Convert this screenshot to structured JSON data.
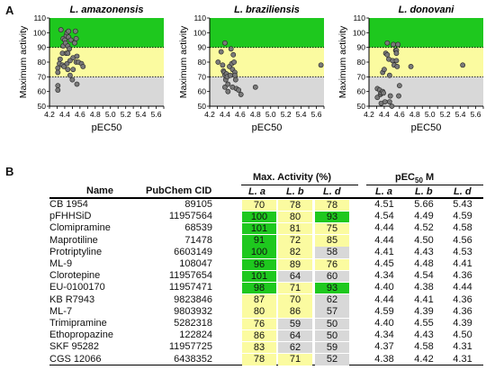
{
  "panel_a_label": "A",
  "panel_b_label": "B",
  "colors": {
    "green": "#1ec81e",
    "yellow": "#fbfba0",
    "gray": "#d8d8d8"
  },
  "chart_data": [
    {
      "type": "scatter",
      "title": "L. amazonensis",
      "xlabel": "pEC50",
      "ylabel": "Maximum activity",
      "xlim": [
        4.2,
        5.7
      ],
      "ylim": [
        50,
        110
      ],
      "xticks": [
        "4.2",
        "4.3",
        "4.4",
        "4.5",
        "4.6",
        "4.7",
        "4.8",
        "4.9",
        "5.0",
        "5.1",
        "5.2",
        "5.3",
        "5.4",
        "5.5",
        "5.6",
        "5.7"
      ],
      "yticks": [
        "50",
        "60",
        "70",
        "80",
        "90",
        "100",
        "110"
      ],
      "bands": [
        {
          "from": 90,
          "to": 110,
          "color": "green"
        },
        {
          "from": 70,
          "to": 90,
          "color": "yellow"
        },
        {
          "from": 50,
          "to": 70,
          "color": "gray"
        }
      ],
      "points": [
        [
          4.31,
          76
        ],
        [
          4.31,
          73
        ],
        [
          4.31,
          64
        ],
        [
          4.31,
          61
        ],
        [
          4.33,
          79
        ],
        [
          4.34,
          82
        ],
        [
          4.35,
          102
        ],
        [
          4.37,
          86
        ],
        [
          4.37,
          78
        ],
        [
          4.38,
          96
        ],
        [
          4.38,
          91
        ],
        [
          4.39,
          77
        ],
        [
          4.4,
          95
        ],
        [
          4.41,
          93
        ],
        [
          4.42,
          98
        ],
        [
          4.43,
          100
        ],
        [
          4.42,
          86
        ],
        [
          4.43,
          79
        ],
        [
          4.44,
          91
        ],
        [
          4.44,
          86
        ],
        [
          4.44,
          75
        ],
        [
          4.45,
          101
        ],
        [
          4.45,
          97
        ],
        [
          4.46,
          89
        ],
        [
          4.47,
          81
        ],
        [
          4.47,
          71
        ],
        [
          4.48,
          95
        ],
        [
          4.5,
          68
        ],
        [
          4.51,
          83
        ],
        [
          4.51,
          75
        ],
        [
          4.53,
          93
        ],
        [
          4.54,
          101
        ],
        [
          4.55,
          96
        ],
        [
          4.55,
          80
        ],
        [
          4.56,
          84
        ],
        [
          4.56,
          65
        ],
        [
          4.58,
          80
        ],
        [
          4.62,
          79
        ],
        [
          4.64,
          77
        ]
      ]
    },
    {
      "type": "scatter",
      "title": "L. braziliensis",
      "xlabel": "pEC50",
      "ylabel": "Maximum activity",
      "xlim": [
        4.2,
        5.7
      ],
      "ylim": [
        50,
        110
      ],
      "xticks": [
        "4.2",
        "4.3",
        "4.4",
        "4.5",
        "4.6",
        "4.7",
        "4.8",
        "4.9",
        "5.0",
        "5.1",
        "5.2",
        "5.3",
        "5.4",
        "5.5",
        "5.6",
        "5.7"
      ],
      "yticks": [
        "50",
        "60",
        "70",
        "80",
        "90",
        "100",
        "110"
      ],
      "bands": [
        {
          "from": 90,
          "to": 110,
          "color": "green"
        },
        {
          "from": 70,
          "to": 90,
          "color": "yellow"
        },
        {
          "from": 50,
          "to": 70,
          "color": "gray"
        }
      ],
      "points": [
        [
          4.31,
          80
        ],
        [
          4.35,
          87
        ],
        [
          4.37,
          78
        ],
        [
          4.38,
          74
        ],
        [
          4.39,
          73
        ],
        [
          4.4,
          93
        ],
        [
          4.4,
          71
        ],
        [
          4.4,
          63
        ],
        [
          4.41,
          68
        ],
        [
          4.42,
          72
        ],
        [
          4.43,
          70
        ],
        [
          4.44,
          65
        ],
        [
          4.44,
          60
        ],
        [
          4.46,
          77
        ],
        [
          4.47,
          71
        ],
        [
          4.48,
          89
        ],
        [
          4.49,
          79
        ],
        [
          4.5,
          75
        ],
        [
          4.5,
          63
        ],
        [
          4.51,
          85
        ],
        [
          4.52,
          80
        ],
        [
          4.53,
          73
        ],
        [
          4.53,
          71
        ],
        [
          4.54,
          68
        ],
        [
          4.55,
          62
        ],
        [
          4.58,
          61
        ],
        [
          4.61,
          58
        ],
        [
          4.8,
          63
        ],
        [
          5.66,
          78
        ]
      ]
    },
    {
      "type": "scatter",
      "title": "L. donovani",
      "xlabel": "pEC50",
      "ylabel": "Maximum activity",
      "xlim": [
        4.2,
        5.7
      ],
      "ylim": [
        50,
        110
      ],
      "xticks": [
        "4.2",
        "4.3",
        "4.4",
        "4.5",
        "4.6",
        "4.7",
        "4.8",
        "4.9",
        "5.0",
        "5.1",
        "5.2",
        "5.3",
        "5.4",
        "5.5",
        "5.6",
        "5.7"
      ],
      "yticks": [
        "50",
        "60",
        "70",
        "80",
        "90",
        "100",
        "110"
      ],
      "bands": [
        {
          "from": 90,
          "to": 110,
          "color": "green"
        },
        {
          "from": 70,
          "to": 90,
          "color": "yellow"
        },
        {
          "from": 50,
          "to": 70,
          "color": "gray"
        }
      ],
      "points": [
        [
          4.31,
          62
        ],
        [
          4.31,
          56
        ],
        [
          4.34,
          61
        ],
        [
          4.35,
          58
        ],
        [
          4.36,
          52
        ],
        [
          4.36,
          59
        ],
        [
          4.38,
          60
        ],
        [
          4.38,
          73
        ],
        [
          4.39,
          59
        ],
        [
          4.4,
          75
        ],
        [
          4.41,
          53
        ],
        [
          4.42,
          86
        ],
        [
          4.44,
          85
        ],
        [
          4.44,
          93
        ],
        [
          4.46,
          82
        ],
        [
          4.47,
          71
        ],
        [
          4.47,
          53
        ],
        [
          4.48,
          57
        ],
        [
          4.5,
          50
        ],
        [
          4.51,
          81
        ],
        [
          4.52,
          92
        ],
        [
          4.53,
          78
        ],
        [
          4.55,
          88
        ],
        [
          4.56,
          88
        ],
        [
          4.56,
          86
        ],
        [
          4.56,
          81
        ],
        [
          4.57,
          77
        ],
        [
          4.58,
          92
        ],
        [
          4.59,
          57
        ],
        [
          4.6,
          64
        ],
        [
          5.43,
          78
        ],
        [
          4.75,
          77
        ]
      ]
    }
  ],
  "table": {
    "col_name": "Name",
    "col_cid": "PubChem CID",
    "group_max": "Max. Activity (%)",
    "group_pec_pre": "pEC",
    "group_pec_sub": "50",
    "group_pec_post": " M",
    "sub_a": "L. a",
    "sub_b": "L. b",
    "sub_d": "L. d",
    "rows": [
      {
        "name": "CB 1954",
        "cid": "89105",
        "ma": "70",
        "mb": "78",
        "md": "78",
        "pa": "4.51",
        "pb": "5.66",
        "pd": "5.43"
      },
      {
        "name": "pFHHSiD",
        "cid": "11957564",
        "ma": "100",
        "mb": "80",
        "md": "93",
        "pa": "4.54",
        "pb": "4.49",
        "pd": "4.59"
      },
      {
        "name": "Clomipramine",
        "cid": "68539",
        "ma": "101",
        "mb": "81",
        "md": "75",
        "pa": "4.44",
        "pb": "4.52",
        "pd": "4.58"
      },
      {
        "name": "Maprotiline",
        "cid": "71478",
        "ma": "91",
        "mb": "72",
        "md": "85",
        "pa": "4.44",
        "pb": "4.50",
        "pd": "4.56"
      },
      {
        "name": "Protriptyline",
        "cid": "6603149",
        "ma": "100",
        "mb": "82",
        "md": "58",
        "pa": "4.41",
        "pb": "4.43",
        "pd": "4.53"
      },
      {
        "name": "ML-9",
        "cid": "108047",
        "ma": "96",
        "mb": "89",
        "md": "76",
        "pa": "4.45",
        "pb": "4.48",
        "pd": "4.41"
      },
      {
        "name": "Clorotepine",
        "cid": "11957654",
        "ma": "101",
        "mb": "64",
        "md": "60",
        "pa": "4.34",
        "pb": "4.54",
        "pd": "4.36"
      },
      {
        "name": "EU-0100170",
        "cid": "11957471",
        "ma": "98",
        "mb": "71",
        "md": "93",
        "pa": "4.40",
        "pb": "4.38",
        "pd": "4.44"
      },
      {
        "name": "KB R7943",
        "cid": "9823846",
        "ma": "87",
        "mb": "70",
        "md": "62",
        "pa": "4.44",
        "pb": "4.41",
        "pd": "4.36"
      },
      {
        "name": "ML-7",
        "cid": "9803932",
        "ma": "80",
        "mb": "86",
        "md": "57",
        "pa": "4.59",
        "pb": "4.39",
        "pd": "4.36"
      },
      {
        "name": "Trimipramine",
        "cid": "5282318",
        "ma": "76",
        "mb": "59",
        "md": "50",
        "pa": "4.40",
        "pb": "4.55",
        "pd": "4.39"
      },
      {
        "name": "Ethopropazine",
        "cid": "122824",
        "ma": "86",
        "mb": "64",
        "md": "50",
        "pa": "4.34",
        "pb": "4.43",
        "pd": "4.50"
      },
      {
        "name": "SKF 95282",
        "cid": "11957725",
        "ma": "83",
        "mb": "62",
        "md": "59",
        "pa": "4.37",
        "pb": "4.58",
        "pd": "4.31"
      },
      {
        "name": "CGS 12066",
        "cid": "6438352",
        "ma": "78",
        "mb": "71",
        "md": "52",
        "pa": "4.38",
        "pb": "4.42",
        "pd": "4.31"
      }
    ]
  }
}
